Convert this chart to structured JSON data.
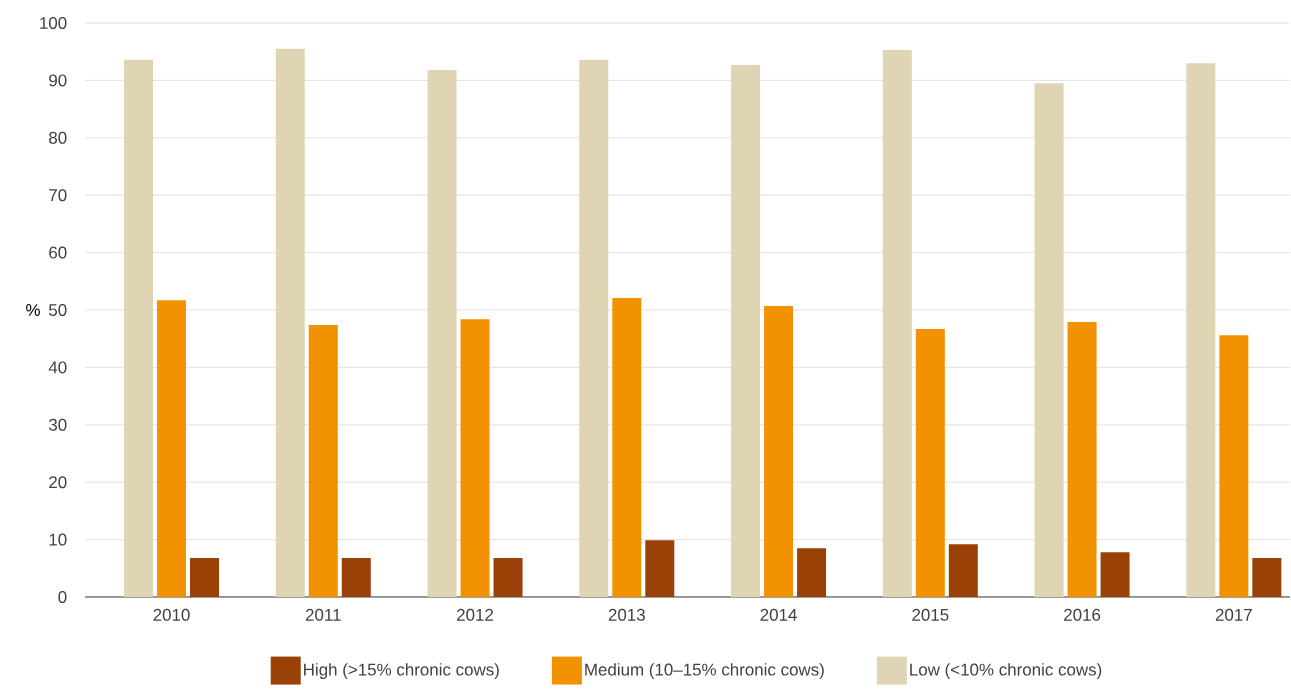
{
  "chart_data": {
    "type": "bar",
    "ylabel": "%",
    "categories": [
      "2010",
      "2011",
      "2012",
      "2013",
      "2014",
      "2015",
      "2016",
      "2017"
    ],
    "series": [
      {
        "name": "High (>15% chronic cows)",
        "color": "#9a4108",
        "values": [
          6.8,
          6.8,
          6.8,
          9.9,
          8.5,
          9.2,
          7.8,
          6.8
        ]
      },
      {
        "name": "Medium (10–15% chronic cows)",
        "color": "#f39200",
        "values": [
          51.7,
          47.4,
          48.4,
          52.1,
          50.7,
          46.7,
          47.9,
          45.6
        ]
      },
      {
        "name": "Low (<10% chronic cows)",
        "color": "#dfd5b4",
        "values": [
          93.6,
          95.5,
          91.8,
          93.6,
          92.7,
          95.3,
          89.5,
          93.0
        ]
      }
    ],
    "ylim": [
      0,
      100
    ],
    "yticks": [
      0,
      10,
      20,
      30,
      40,
      50,
      60,
      70,
      80,
      90,
      100
    ],
    "grid": "y",
    "legend": "bottom"
  }
}
